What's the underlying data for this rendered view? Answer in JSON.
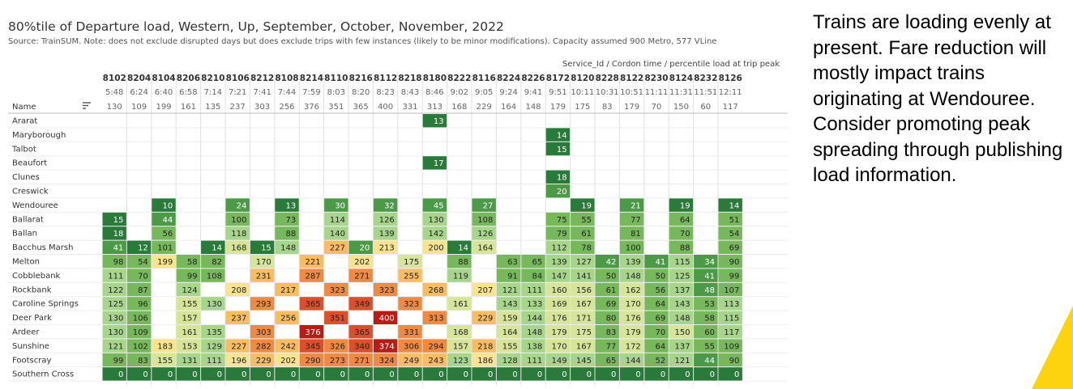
{
  "title": "80%tile of Departure load, Western, Up, September, October, November, 2022",
  "source": "Source: TrainSUM. Note: does not exclude disrupted days but does exclude trips with few instances (likely to be minor modifications). Capacity assumed 900 Metro, 577 VLine",
  "commentary": "Trains are loading evenly at present. Fare reduction will mostly impact trains originating at Wendouree. Consider promoting peak spreading through publishing load information.",
  "colors": {
    "scale": [
      "#2a7a3b",
      "#4c9a48",
      "#78b85c",
      "#a8d58c",
      "#d6e59a",
      "#f8e48e",
      "#f7bd62",
      "#ee8a42",
      "#dc4f2c",
      "#b81c16"
    ],
    "accent": "#fdd20e"
  },
  "chart_data": {
    "type": "heatmap",
    "column_header_title": "Service_Id / Cordon time / percentile load at trip peak",
    "row_header_title": "Name",
    "columns": [
      {
        "service": "8102",
        "time": "5:48",
        "peak": "130"
      },
      {
        "service": "8204",
        "time": "6:24",
        "peak": "109"
      },
      {
        "service": "8104",
        "time": "6:40",
        "peak": "199"
      },
      {
        "service": "8206",
        "time": "6:58",
        "peak": "161"
      },
      {
        "service": "8210",
        "time": "7:14",
        "peak": "135"
      },
      {
        "service": "8106",
        "time": "7:21",
        "peak": "237"
      },
      {
        "service": "8212",
        "time": "7:41",
        "peak": "303"
      },
      {
        "service": "8108",
        "time": "7:44",
        "peak": "256"
      },
      {
        "service": "8214",
        "time": "7:59",
        "peak": "376"
      },
      {
        "service": "8110",
        "time": "8:03",
        "peak": "351"
      },
      {
        "service": "8216",
        "time": "8:20",
        "peak": "365"
      },
      {
        "service": "8112",
        "time": "8:23",
        "peak": "400"
      },
      {
        "service": "8218",
        "time": "8:43",
        "peak": "331"
      },
      {
        "service": "8180",
        "time": "8:46",
        "peak": "313"
      },
      {
        "service": "8222",
        "time": "9:02",
        "peak": "168"
      },
      {
        "service": "8116",
        "time": "9:05",
        "peak": "229"
      },
      {
        "service": "8224",
        "time": "9:24",
        "peak": "164"
      },
      {
        "service": "8226",
        "time": "9:41",
        "peak": "148"
      },
      {
        "service": "8172",
        "time": "9:51",
        "peak": "179"
      },
      {
        "service": "8120",
        "time": "10:11",
        "peak": "175"
      },
      {
        "service": "8228",
        "time": "10:31",
        "peak": "83"
      },
      {
        "service": "8122",
        "time": "10:51",
        "peak": "179"
      },
      {
        "service": "8230",
        "time": "11:11",
        "peak": "70"
      },
      {
        "service": "8124",
        "time": "11:31",
        "peak": "150"
      },
      {
        "service": "8232",
        "time": "11:51",
        "peak": "60"
      },
      {
        "service": "8126",
        "time": "12:11",
        "peak": "117"
      }
    ],
    "rows": [
      {
        "name": "Ararat",
        "values": [
          null,
          null,
          null,
          null,
          null,
          null,
          null,
          null,
          null,
          null,
          null,
          null,
          null,
          13,
          null,
          null,
          null,
          null,
          null,
          null,
          null,
          null,
          null,
          null,
          null,
          null
        ]
      },
      {
        "name": "Maryborough",
        "values": [
          null,
          null,
          null,
          null,
          null,
          null,
          null,
          null,
          null,
          null,
          null,
          null,
          null,
          null,
          null,
          null,
          null,
          null,
          14,
          null,
          null,
          null,
          null,
          null,
          null,
          null
        ]
      },
      {
        "name": "Talbot",
        "values": [
          null,
          null,
          null,
          null,
          null,
          null,
          null,
          null,
          null,
          null,
          null,
          null,
          null,
          null,
          null,
          null,
          null,
          null,
          15,
          null,
          null,
          null,
          null,
          null,
          null,
          null
        ]
      },
      {
        "name": "Beaufort",
        "values": [
          null,
          null,
          null,
          null,
          null,
          null,
          null,
          null,
          null,
          null,
          null,
          null,
          null,
          17,
          null,
          null,
          null,
          null,
          null,
          null,
          null,
          null,
          null,
          null,
          null,
          null
        ]
      },
      {
        "name": "Clunes",
        "values": [
          null,
          null,
          null,
          null,
          null,
          null,
          null,
          null,
          null,
          null,
          null,
          null,
          null,
          null,
          null,
          null,
          null,
          null,
          18,
          null,
          null,
          null,
          null,
          null,
          null,
          null
        ]
      },
      {
        "name": "Creswick",
        "values": [
          null,
          null,
          null,
          null,
          null,
          null,
          null,
          null,
          null,
          null,
          null,
          null,
          null,
          null,
          null,
          null,
          null,
          null,
          20,
          null,
          null,
          null,
          null,
          null,
          null,
          null
        ]
      },
      {
        "name": "Wendouree",
        "values": [
          null,
          null,
          10,
          null,
          null,
          24,
          null,
          13,
          null,
          30,
          null,
          32,
          null,
          45,
          null,
          27,
          null,
          null,
          null,
          19,
          null,
          21,
          null,
          19,
          null,
          14
        ]
      },
      {
        "name": "Ballarat",
        "values": [
          15,
          null,
          44,
          null,
          null,
          100,
          null,
          73,
          null,
          114,
          null,
          126,
          null,
          130,
          null,
          108,
          null,
          null,
          75,
          55,
          null,
          77,
          null,
          64,
          null,
          51
        ]
      },
      {
        "name": "Ballan",
        "values": [
          18,
          null,
          56,
          null,
          null,
          118,
          null,
          88,
          null,
          140,
          null,
          139,
          null,
          142,
          null,
          126,
          null,
          null,
          79,
          61,
          null,
          81,
          null,
          70,
          null,
          54
        ]
      },
      {
        "name": "Bacchus Marsh",
        "values": [
          41,
          12,
          101,
          null,
          14,
          168,
          15,
          148,
          null,
          227,
          20,
          213,
          null,
          200,
          14,
          164,
          null,
          null,
          112,
          78,
          null,
          100,
          null,
          88,
          null,
          69
        ]
      },
      {
        "name": "Melton",
        "values": [
          98,
          54,
          199,
          58,
          82,
          null,
          170,
          null,
          221,
          null,
          202,
          null,
          175,
          null,
          88,
          null,
          63,
          65,
          139,
          127,
          42,
          139,
          41,
          115,
          34,
          90
        ]
      },
      {
        "name": "Cobblebank",
        "values": [
          111,
          70,
          null,
          99,
          108,
          null,
          231,
          null,
          287,
          null,
          271,
          null,
          255,
          null,
          119,
          null,
          91,
          84,
          147,
          141,
          50,
          148,
          50,
          125,
          41,
          99
        ]
      },
      {
        "name": "Rockbank",
        "values": [
          122,
          87,
          null,
          124,
          null,
          208,
          null,
          217,
          null,
          323,
          null,
          323,
          null,
          268,
          null,
          207,
          121,
          111,
          160,
          156,
          61,
          162,
          56,
          137,
          48,
          107
        ]
      },
      {
        "name": "Caroline Springs",
        "values": [
          125,
          96,
          null,
          155,
          130,
          null,
          293,
          null,
          365,
          null,
          349,
          null,
          323,
          null,
          161,
          null,
          143,
          133,
          169,
          167,
          69,
          170,
          64,
          143,
          53,
          113
        ]
      },
      {
        "name": "Deer Park",
        "values": [
          130,
          106,
          null,
          157,
          null,
          237,
          null,
          256,
          null,
          351,
          null,
          400,
          null,
          313,
          null,
          229,
          159,
          144,
          176,
          171,
          80,
          176,
          69,
          148,
          58,
          115
        ]
      },
      {
        "name": "Ardeer",
        "values": [
          130,
          109,
          null,
          161,
          135,
          null,
          303,
          null,
          376,
          null,
          365,
          null,
          331,
          null,
          168,
          null,
          164,
          148,
          179,
          175,
          83,
          179,
          70,
          150,
          60,
          117
        ]
      },
      {
        "name": "Sunshine",
        "values": [
          121,
          102,
          183,
          153,
          129,
          227,
          282,
          242,
          345,
          326,
          340,
          374,
          306,
          294,
          157,
          218,
          155,
          138,
          170,
          167,
          77,
          172,
          64,
          137,
          55,
          109
        ]
      },
      {
        "name": "Footscray",
        "values": [
          99,
          83,
          155,
          131,
          111,
          196,
          229,
          202,
          290,
          273,
          271,
          324,
          249,
          243,
          123,
          186,
          128,
          111,
          149,
          145,
          65,
          144,
          52,
          121,
          44,
          90
        ]
      },
      {
        "name": "Southern Cross",
        "values": [
          0,
          0,
          0,
          0,
          0,
          0,
          0,
          0,
          0,
          0,
          0,
          0,
          0,
          0,
          0,
          0,
          0,
          0,
          0,
          0,
          0,
          0,
          0,
          0,
          0,
          0
        ]
      }
    ]
  }
}
